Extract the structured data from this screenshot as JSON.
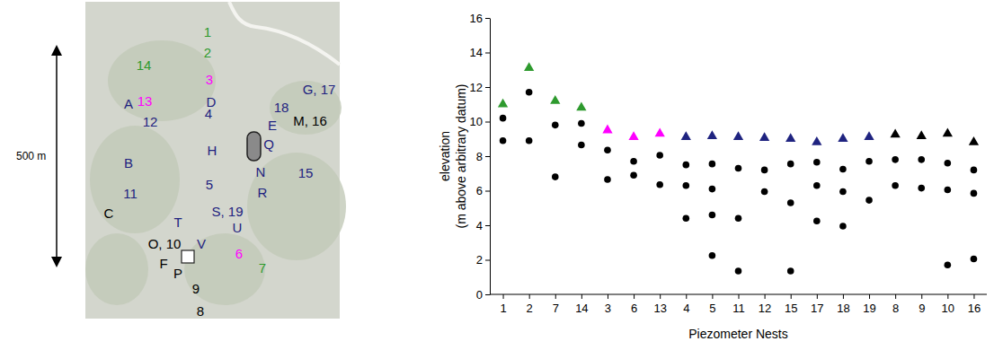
{
  "chart_data": {
    "type": "scatter",
    "x_label": "Piezometer Nests",
    "y_label": [
      "elevation",
      "(m above arbitrary datum)"
    ],
    "categories": [
      "1",
      "2",
      "7",
      "14",
      "3",
      "6",
      "13",
      "4",
      "5",
      "11",
      "12",
      "15",
      "17",
      "18",
      "19",
      "8",
      "9",
      "10",
      "16"
    ],
    "ylim": [
      0,
      16
    ],
    "yticks": [
      0,
      2,
      4,
      6,
      8,
      10,
      12,
      14,
      16
    ],
    "grid": false,
    "series": [
      {
        "marker": "triangle",
        "colors": [
          "#2e9a2e",
          "#2e9a2e",
          "#2e9a2e",
          "#2e9a2e",
          "#ff00ff",
          "#ff00ff",
          "#ff00ff",
          "#1f2380",
          "#1f2380",
          "#1f2380",
          "#1f2380",
          "#1f2380",
          "#1f2380",
          "#1f2380",
          "#1f2380",
          "#000000",
          "#000000",
          "#000000",
          "#000000"
        ],
        "values": [
          11.0,
          13.1,
          11.2,
          10.8,
          9.5,
          9.1,
          9.3,
          9.1,
          9.15,
          9.1,
          9.05,
          9.0,
          8.8,
          9.0,
          9.1,
          9.25,
          9.15,
          9.3,
          8.8
        ]
      },
      {
        "marker": "circle",
        "color": "#000000",
        "values": [
          10.2,
          11.7,
          9.8,
          9.9,
          8.35,
          7.7,
          8.05,
          7.5,
          7.55,
          7.3,
          7.2,
          7.55,
          7.65,
          7.25,
          7.7,
          7.8,
          7.8,
          7.6,
          7.2
        ]
      },
      {
        "marker": "circle",
        "color": "#000000",
        "values": [
          8.9,
          8.9,
          6.8,
          8.65,
          6.65,
          6.9,
          6.35,
          6.3,
          6.1,
          4.4,
          5.95,
          5.3,
          6.3,
          5.95,
          5.45,
          6.3,
          6.15,
          6.05,
          5.85
        ]
      },
      {
        "marker": "circle",
        "color": "#000000",
        "values": [
          null,
          null,
          null,
          null,
          null,
          null,
          null,
          4.4,
          4.6,
          1.35,
          null,
          1.35,
          4.25,
          3.95,
          null,
          null,
          null,
          1.7,
          2.05
        ]
      },
      {
        "marker": "circle",
        "color": "#000000",
        "values": [
          null,
          null,
          null,
          null,
          null,
          null,
          null,
          null,
          2.25,
          null,
          null,
          null,
          null,
          null,
          null,
          null,
          null,
          null,
          null
        ]
      }
    ]
  },
  "map": {
    "scale_label": "500 m",
    "labels": [
      {
        "text": "1",
        "color": "#2e9a2e"
      },
      {
        "text": "2",
        "color": "#2e9a2e"
      },
      {
        "text": "14",
        "color": "#2e9a2e"
      },
      {
        "text": "3",
        "color": "#ff00ff"
      },
      {
        "text": "A",
        "color": "#1f2380"
      },
      {
        "text": "13",
        "color": "#ff00ff"
      },
      {
        "text": "D",
        "color": "#1f2380"
      },
      {
        "text": "4",
        "color": "#1f2380"
      },
      {
        "text": "12",
        "color": "#1f2380"
      },
      {
        "text": "18",
        "color": "#1f2380"
      },
      {
        "text": "G, 17",
        "color": "#1f2380"
      },
      {
        "text": "E",
        "color": "#1f2380"
      },
      {
        "text": "M, 16",
        "color": "#000000"
      },
      {
        "text": "Q",
        "color": "#1f2380"
      },
      {
        "text": "H",
        "color": "#1f2380"
      },
      {
        "text": "N",
        "color": "#1f2380"
      },
      {
        "text": "B",
        "color": "#1f2380"
      },
      {
        "text": "15",
        "color": "#1f2380"
      },
      {
        "text": "5",
        "color": "#1f2380"
      },
      {
        "text": "R",
        "color": "#1f2380"
      },
      {
        "text": "11",
        "color": "#1f2380"
      },
      {
        "text": "C",
        "color": "#000000"
      },
      {
        "text": "S, 19",
        "color": "#1f2380"
      },
      {
        "text": "T",
        "color": "#1f2380"
      },
      {
        "text": "U",
        "color": "#1f2380"
      },
      {
        "text": "6",
        "color": "#ff00ff"
      },
      {
        "text": "O, 10",
        "color": "#000000"
      },
      {
        "text": "V",
        "color": "#1f2380"
      },
      {
        "text": "F",
        "color": "#000000"
      },
      {
        "text": "P",
        "color": "#000000"
      },
      {
        "text": "7",
        "color": "#2e9a2e"
      },
      {
        "text": "9",
        "color": "#000000"
      },
      {
        "text": "8",
        "color": "#000000"
      }
    ]
  }
}
